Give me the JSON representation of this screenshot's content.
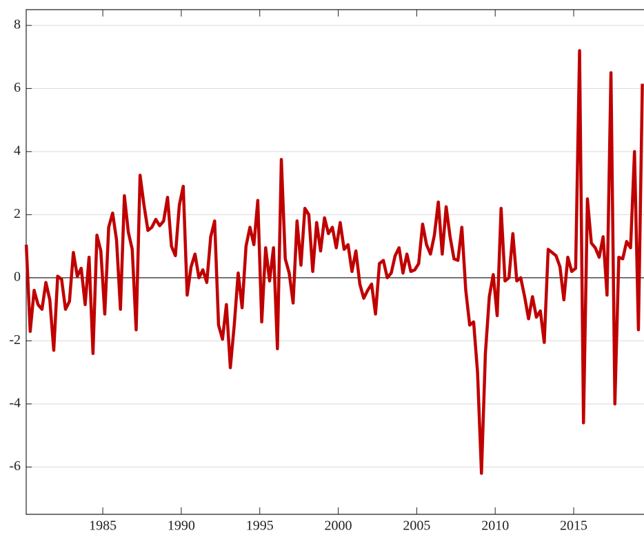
{
  "chart_data": {
    "type": "line",
    "x": [
      1980.125,
      1980.375,
      1980.625,
      1980.875,
      1981.125,
      1981.375,
      1981.625,
      1981.875,
      1982.125,
      1982.375,
      1982.625,
      1982.875,
      1983.125,
      1983.375,
      1983.625,
      1983.875,
      1984.125,
      1984.375,
      1984.625,
      1984.875,
      1985.125,
      1985.375,
      1985.625,
      1985.875,
      1986.125,
      1986.375,
      1986.625,
      1986.875,
      1987.125,
      1987.375,
      1987.625,
      1987.875,
      1988.125,
      1988.375,
      1988.625,
      1988.875,
      1989.125,
      1989.375,
      1989.625,
      1989.875,
      1990.125,
      1990.375,
      1990.625,
      1990.875,
      1991.125,
      1991.375,
      1991.625,
      1991.875,
      1992.125,
      1992.375,
      1992.625,
      1992.875,
      1993.125,
      1993.375,
      1993.625,
      1993.875,
      1994.125,
      1994.375,
      1994.625,
      1994.875,
      1995.125,
      1995.375,
      1995.625,
      1995.875,
      1996.125,
      1996.375,
      1996.625,
      1996.875,
      1997.125,
      1997.375,
      1997.625,
      1997.875,
      1998.125,
      1998.375,
      1998.625,
      1998.875,
      1999.125,
      1999.375,
      1999.625,
      1999.875,
      2000.125,
      2000.375,
      2000.625,
      2000.875,
      2001.125,
      2001.375,
      2001.625,
      2001.875,
      2002.125,
      2002.375,
      2002.625,
      2002.875,
      2003.125,
      2003.375,
      2003.625,
      2003.875,
      2004.125,
      2004.375,
      2004.625,
      2004.875,
      2005.125,
      2005.375,
      2005.625,
      2005.875,
      2006.125,
      2006.375,
      2006.625,
      2006.875,
      2007.125,
      2007.375,
      2007.625,
      2007.875,
      2008.125,
      2008.375,
      2008.625,
      2008.875,
      2009.125,
      2009.375,
      2009.625,
      2009.875,
      2010.125,
      2010.375,
      2010.625,
      2010.875,
      2011.125,
      2011.375,
      2011.625,
      2011.875,
      2012.125,
      2012.375,
      2012.625,
      2012.875,
      2013.125,
      2013.375,
      2013.625,
      2013.875,
      2014.125,
      2014.375,
      2014.625,
      2014.875,
      2015.125,
      2015.375,
      2015.625,
      2015.875,
      2016.125,
      2016.375,
      2016.625,
      2016.875,
      2017.125,
      2017.375,
      2017.625,
      2017.875,
      2018.125,
      2018.375,
      2018.625,
      2018.875,
      2019.125,
      2019.375
    ],
    "series": [
      {
        "color": "#c00000",
        "values": [
          1.05,
          -1.7,
          -0.4,
          -0.85,
          -1.0,
          -0.15,
          -0.7,
          -2.3,
          0.05,
          -0.05,
          -1.0,
          -0.75,
          0.8,
          0.05,
          0.3,
          -0.85,
          0.65,
          -2.4,
          1.35,
          0.85,
          -1.15,
          1.6,
          2.05,
          1.2,
          -1.0,
          2.6,
          1.45,
          0.9,
          -1.65,
          3.25,
          2.3,
          1.5,
          1.6,
          1.85,
          1.65,
          1.8,
          2.55,
          1.0,
          0.7,
          2.3,
          2.9,
          -0.55,
          0.35,
          0.75,
          0.0,
          0.25,
          -0.15,
          1.3,
          1.8,
          -1.5,
          -1.95,
          -0.85,
          -2.85,
          -1.5,
          0.15,
          -0.95,
          1.0,
          1.6,
          1.05,
          2.45,
          -1.4,
          0.95,
          -0.1,
          0.95,
          -2.25,
          3.75,
          0.6,
          0.15,
          -0.8,
          1.8,
          0.4,
          2.2,
          2.0,
          0.2,
          1.75,
          0.85,
          1.9,
          1.4,
          1.6,
          0.95,
          1.75,
          0.9,
          1.05,
          0.2,
          0.85,
          -0.2,
          -0.65,
          -0.4,
          -0.2,
          -1.15,
          0.45,
          0.55,
          0.0,
          0.15,
          0.7,
          0.95,
          0.15,
          0.75,
          0.2,
          0.25,
          0.45,
          1.7,
          1.05,
          0.75,
          1.35,
          2.4,
          0.75,
          2.25,
          1.3,
          0.6,
          0.55,
          1.6,
          -0.4,
          -1.5,
          -1.4,
          -3.0,
          -6.2,
          -2.4,
          -0.6,
          0.1,
          -1.2,
          2.2,
          -0.1,
          0.0,
          1.4,
          -0.1,
          0.0,
          -0.6,
          -1.3,
          -0.6,
          -1.25,
          -1.05,
          -2.05,
          0.9,
          0.8,
          0.7,
          0.35,
          -0.7,
          0.65,
          0.2,
          0.3,
          7.2,
          -4.6,
          2.5,
          1.1,
          0.95,
          0.65,
          1.3,
          -0.55,
          6.5,
          -4.0,
          0.65,
          0.6,
          1.15,
          0.95,
          4.0,
          -1.65,
          6.15
        ]
      }
    ],
    "xlim": [
      1980.12,
      2019.48
    ],
    "xticks": [
      1985,
      1990,
      1995,
      2000,
      2005,
      2010,
      2015
    ],
    "ylim": [
      -7.5,
      8.5
    ],
    "yticks": [
      -6,
      -4,
      -2,
      0,
      2,
      4,
      6,
      8
    ],
    "grid": true,
    "zero_line": true
  }
}
